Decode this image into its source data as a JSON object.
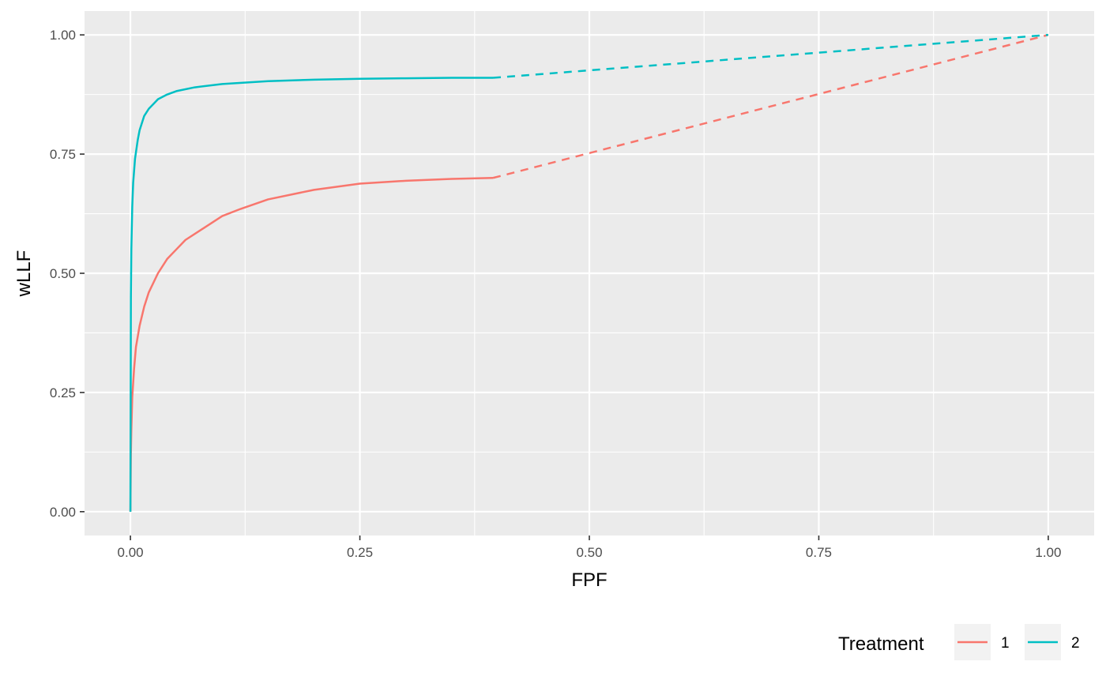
{
  "chart_data": {
    "type": "line",
    "title": "",
    "xlabel": "FPF",
    "ylabel": "wLLF",
    "xlim": [
      -0.05,
      1.05
    ],
    "ylim": [
      -0.05,
      1.05
    ],
    "x_ticks": [
      0.0,
      0.25,
      0.5,
      0.75,
      1.0
    ],
    "x_tick_labels": [
      "0.00",
      "0.25",
      "0.50",
      "0.75",
      "1.00"
    ],
    "y_ticks": [
      0.0,
      0.25,
      0.5,
      0.75,
      1.0
    ],
    "y_tick_labels": [
      "0.00",
      "0.25",
      "0.50",
      "0.75",
      "1.00"
    ],
    "grid": true,
    "legend": {
      "title": "Treatment",
      "position": "bottom-right"
    },
    "series": [
      {
        "name": "1",
        "color": "#F8766D",
        "solid": {
          "x": [
            0,
            0.0005,
            0.001,
            0.002,
            0.004,
            0.006,
            0.01,
            0.015,
            0.02,
            0.03,
            0.04,
            0.05,
            0.06,
            0.08,
            0.1,
            0.12,
            0.15,
            0.2,
            0.25,
            0.3,
            0.35,
            0.395
          ],
          "y": [
            0,
            0.12,
            0.17,
            0.24,
            0.3,
            0.345,
            0.39,
            0.43,
            0.46,
            0.5,
            0.53,
            0.55,
            0.57,
            0.595,
            0.62,
            0.635,
            0.655,
            0.675,
            0.688,
            0.694,
            0.698,
            0.7
          ]
        },
        "dashed": {
          "x": [
            0.395,
            1.0
          ],
          "y": [
            0.7,
            1.0
          ]
        }
      },
      {
        "name": "2",
        "color": "#00BFC4",
        "solid": {
          "x": [
            0,
            0.0005,
            0.001,
            0.002,
            0.003,
            0.005,
            0.008,
            0.01,
            0.015,
            0.02,
            0.03,
            0.04,
            0.05,
            0.07,
            0.1,
            0.15,
            0.2,
            0.25,
            0.3,
            0.35,
            0.395
          ],
          "y": [
            0,
            0.45,
            0.55,
            0.64,
            0.69,
            0.74,
            0.78,
            0.8,
            0.83,
            0.845,
            0.865,
            0.875,
            0.882,
            0.89,
            0.897,
            0.903,
            0.906,
            0.908,
            0.909,
            0.91,
            0.91
          ]
        },
        "dashed": {
          "x": [
            0.395,
            1.0
          ],
          "y": [
            0.91,
            1.0
          ]
        }
      }
    ]
  }
}
